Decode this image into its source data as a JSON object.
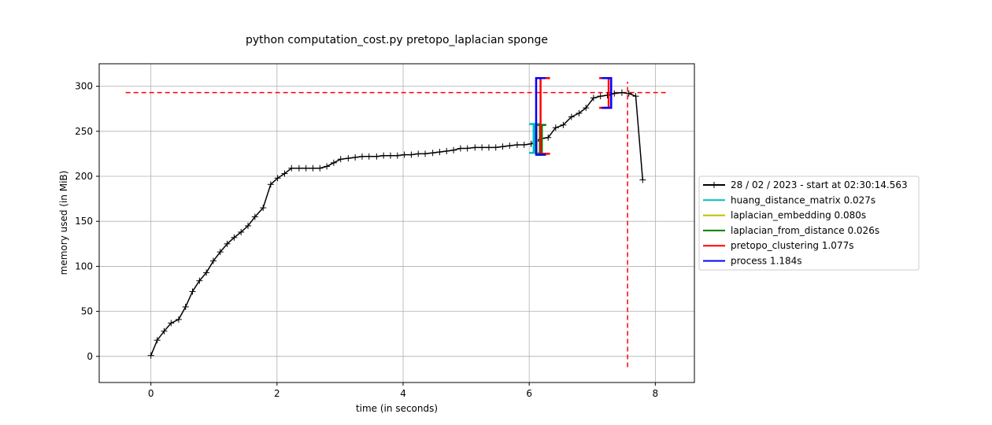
{
  "chart_data": {
    "type": "line",
    "title": "python computation_cost.py pretopo_laplacian sponge",
    "xlabel": "time (in seconds)",
    "ylabel": "memory used (in MiB)",
    "xlim": [
      -0.82,
      8.62
    ],
    "ylim": [
      -29,
      325
    ],
    "xticks": [
      0,
      2,
      4,
      6,
      8
    ],
    "yticks": [
      0,
      50,
      100,
      150,
      200,
      250,
      300
    ],
    "grid": true,
    "legend_placement": "center-right outside",
    "memory_series": {
      "name": "28 / 02 / 2023 - start at 02:30:14.563",
      "color": "#000000",
      "x": [
        0.0,
        0.1,
        0.21,
        0.32,
        0.44,
        0.55,
        0.66,
        0.77,
        0.88,
        0.99,
        1.1,
        1.21,
        1.32,
        1.43,
        1.54,
        1.65,
        1.78,
        1.9,
        2.01,
        2.12,
        2.23,
        2.35,
        2.46,
        2.57,
        2.68,
        2.79,
        2.9,
        3.01,
        3.13,
        3.24,
        3.35,
        3.46,
        3.58,
        3.69,
        3.8,
        3.91,
        4.02,
        4.13,
        4.24,
        4.35,
        4.47,
        4.58,
        4.69,
        4.8,
        4.91,
        5.02,
        5.14,
        5.25,
        5.36,
        5.47,
        5.58,
        5.69,
        5.81,
        5.92,
        6.03,
        6.1,
        6.2,
        6.3,
        6.42,
        6.54,
        6.67,
        6.79,
        6.9,
        7.02,
        7.13,
        7.24,
        7.35,
        7.47,
        7.58,
        7.69,
        7.8
      ],
      "y": [
        1,
        18,
        28,
        37,
        41,
        55,
        72,
        84,
        93,
        106,
        116,
        125,
        132,
        138,
        145,
        155,
        165,
        191,
        198,
        203,
        209,
        209,
        209,
        209,
        209,
        211,
        215,
        219,
        220,
        221,
        222,
        222,
        222,
        223,
        223,
        223,
        224,
        224,
        225,
        225,
        226,
        227,
        228,
        229,
        231,
        231,
        232,
        232,
        232,
        232,
        233,
        234,
        235,
        235,
        236,
        239,
        242,
        243,
        254,
        257,
        266,
        270,
        276,
        287,
        289,
        290,
        292,
        293,
        292,
        289,
        196
      ]
    },
    "max_hline": {
      "y": 293,
      "x_from": -0.4,
      "x_to": 8.2,
      "color": "#ff0000"
    },
    "max_vline": {
      "x": 7.56,
      "y_from": -12,
      "y_to": 305,
      "color": "#ff0000"
    },
    "function_brackets": [
      {
        "name": "huang_distance_matrix 0.027s",
        "color": "#00bfbf",
        "x_start": 6.07,
        "x_end": 6.1,
        "y_low": 226,
        "y_high": 258
      },
      {
        "name": "laplacian_embedding 0.080s",
        "color": "#bfbf00",
        "x_start": 6.12,
        "x_end": 6.2,
        "y_low": 224,
        "y_high": 257
      },
      {
        "name": "laplacian_from_distance 0.026s",
        "color": "#008000",
        "x_start": 6.17,
        "x_end": 6.2,
        "y_low": 224,
        "y_high": 257
      },
      {
        "name": "pretopo_clustering 1.077s",
        "color": "#ff0000",
        "x_start": 6.18,
        "x_end": 7.26,
        "y_low": 225,
        "y_high": 309,
        "end_y_low": 276,
        "end_y_high": 309
      },
      {
        "name": "process 1.184s",
        "color": "#0000ff",
        "x_start": 6.11,
        "x_end": 7.3,
        "y_low": 224,
        "y_high": 309,
        "end_y_low": 276,
        "end_y_high": 309
      }
    ]
  }
}
